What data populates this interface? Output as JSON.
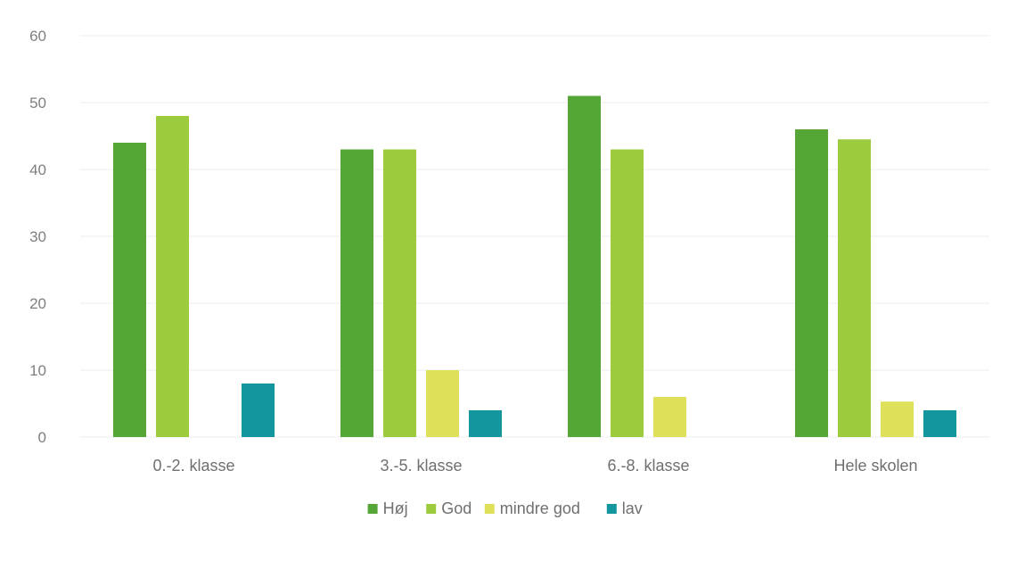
{
  "chart_data": {
    "type": "bar",
    "title": "",
    "xlabel": "",
    "ylabel": "",
    "categories": [
      "0.-2. klasse",
      "3.-5. klasse",
      "6.-8. klasse",
      "Hele skolen"
    ],
    "series": [
      {
        "name": "Høj",
        "color": "#56a537",
        "values": [
          44,
          43,
          51,
          46
        ]
      },
      {
        "name": "God",
        "color": "#9ccb3e",
        "values": [
          48,
          43,
          43,
          44.5
        ]
      },
      {
        "name": "mindre god",
        "color": "#dfe05a",
        "values": [
          0,
          10,
          6,
          5.3
        ]
      },
      {
        "name": "lav",
        "color": "#14969e",
        "values": [
          8,
          4,
          0,
          4
        ]
      }
    ],
    "ylim": [
      0,
      60
    ],
    "yticks": [
      0,
      10,
      20,
      30,
      40,
      50,
      60
    ],
    "grid": true,
    "legend_position": "bottom-center"
  }
}
